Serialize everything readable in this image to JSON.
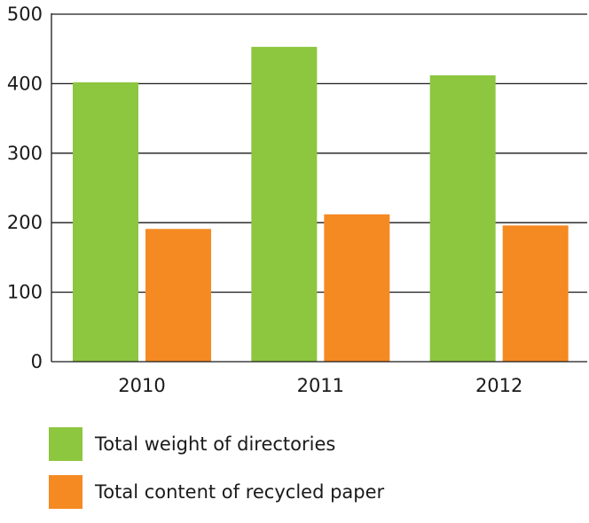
{
  "chart_data": {
    "type": "bar",
    "title": "",
    "xlabel": "",
    "ylabel": "",
    "categories": [
      "2010",
      "2011",
      "2012"
    ],
    "series": [
      {
        "name": "Total weight of directories",
        "color": "#8dc63f",
        "values": [
          402,
          453,
          412
        ]
      },
      {
        "name": "Total content of recycled paper",
        "color": "#f58a23",
        "values": [
          191,
          212,
          196
        ]
      }
    ],
    "ylim": [
      0,
      500
    ],
    "yticks": [
      0,
      100,
      200,
      300,
      400,
      500
    ],
    "grid": true,
    "legend_position": "bottom-left"
  }
}
